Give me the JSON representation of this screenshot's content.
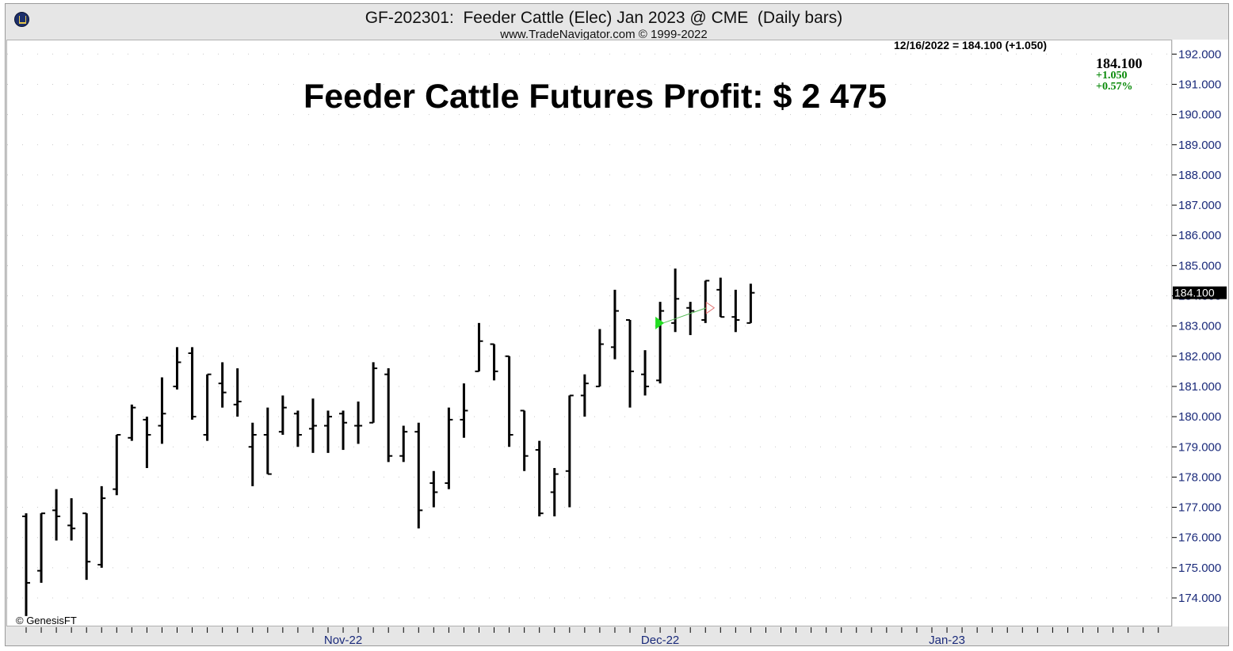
{
  "header": {
    "title": "GF-202301:  Feeder Cattle (Elec) Jan 2023 @ CME  (Daily bars)",
    "subtitle": "www.TradeNavigator.com © 1999-2022"
  },
  "readout": "12/16/2022 = 184.100 (+1.050)",
  "annotation": "Feeder Cattle Futures Profit: $ 2 475",
  "quote": {
    "last": "184.100",
    "change": "+1.050",
    "percent": "+0.57%"
  },
  "copyright": "© GenesisFT",
  "colors": {
    "bar": "#000000",
    "price_axis_text": "#1a2a7a",
    "gain": "#0a8a0a",
    "entry_marker": "#22dd22",
    "exit_marker": "#e07070"
  },
  "chart_data": {
    "type": "ohlc",
    "title": "GF-202301:  Feeder Cattle (Elec) Jan 2023 @ CME  (Daily bars)",
    "ylim": [
      173.0,
      192.5
    ],
    "y_ticks": [
      "174.000",
      "175.000",
      "176.000",
      "177.000",
      "178.000",
      "179.000",
      "180.000",
      "181.000",
      "182.000",
      "183.000",
      "184.000",
      "185.000",
      "186.000",
      "187.000",
      "188.000",
      "189.000",
      "190.000",
      "191.000",
      "192.000"
    ],
    "x_labels": [
      {
        "label": "Nov-22",
        "day": 21
      },
      {
        "label": "Dec-22",
        "day": 42
      },
      {
        "label": "Jan-23",
        "day": 61
      }
    ],
    "days_total": 76,
    "last_price_marker": "184.100",
    "bars": [
      {
        "o": 176.7,
        "h": 176.8,
        "l": 173.4,
        "c": 174.5
      },
      {
        "o": 174.9,
        "h": 176.8,
        "l": 174.5,
        "c": 176.8
      },
      {
        "o": 176.9,
        "h": 177.6,
        "l": 175.9,
        "c": 176.7
      },
      {
        "o": 176.4,
        "h": 177.3,
        "l": 175.9,
        "c": 176.3
      },
      {
        "o": 176.8,
        "h": 176.8,
        "l": 174.6,
        "c": 175.2
      },
      {
        "o": 175.1,
        "h": 177.7,
        "l": 175.0,
        "c": 177.3
      },
      {
        "o": 177.6,
        "h": 179.4,
        "l": 177.4,
        "c": 179.4
      },
      {
        "o": 179.3,
        "h": 180.4,
        "l": 179.2,
        "c": 180.3
      },
      {
        "o": 179.9,
        "h": 180.0,
        "l": 178.3,
        "c": 179.4
      },
      {
        "o": 179.7,
        "h": 181.3,
        "l": 179.1,
        "c": 180.1
      },
      {
        "o": 181.0,
        "h": 182.3,
        "l": 180.9,
        "c": 181.8
      },
      {
        "o": 182.1,
        "h": 182.3,
        "l": 179.9,
        "c": 180.0
      },
      {
        "o": 179.4,
        "h": 181.4,
        "l": 179.2,
        "c": 181.4
      },
      {
        "o": 181.1,
        "h": 181.8,
        "l": 180.3,
        "c": 180.8
      },
      {
        "o": 180.4,
        "h": 181.6,
        "l": 180.0,
        "c": 180.5
      },
      {
        "o": 179.0,
        "h": 179.8,
        "l": 177.7,
        "c": 179.4
      },
      {
        "o": 179.4,
        "h": 180.3,
        "l": 178.1,
        "c": 178.1
      },
      {
        "o": 179.5,
        "h": 180.7,
        "l": 179.4,
        "c": 180.3
      },
      {
        "o": 180.1,
        "h": 180.2,
        "l": 179.0,
        "c": 179.4
      },
      {
        "o": 179.6,
        "h": 180.6,
        "l": 178.8,
        "c": 179.7
      },
      {
        "o": 179.7,
        "h": 180.2,
        "l": 178.8,
        "c": 180.0
      },
      {
        "o": 180.1,
        "h": 180.2,
        "l": 178.9,
        "c": 179.8
      },
      {
        "o": 179.7,
        "h": 180.5,
        "l": 179.1,
        "c": 179.7
      },
      {
        "o": 179.8,
        "h": 181.8,
        "l": 179.8,
        "c": 181.6
      },
      {
        "o": 181.4,
        "h": 181.6,
        "l": 178.5,
        "c": 178.7
      },
      {
        "o": 178.7,
        "h": 179.7,
        "l": 178.5,
        "c": 179.5
      },
      {
        "o": 179.5,
        "h": 179.8,
        "l": 176.3,
        "c": 176.9
      },
      {
        "o": 177.8,
        "h": 178.2,
        "l": 177.0,
        "c": 177.5
      },
      {
        "o": 177.8,
        "h": 180.3,
        "l": 177.6,
        "c": 179.9
      },
      {
        "o": 179.9,
        "h": 181.1,
        "l": 179.3,
        "c": 180.2
      },
      {
        "o": 181.5,
        "h": 183.1,
        "l": 181.5,
        "c": 182.5
      },
      {
        "o": 182.4,
        "h": 182.4,
        "l": 181.2,
        "c": 181.5
      },
      {
        "o": 182.0,
        "h": 182.0,
        "l": 179.0,
        "c": 179.4
      },
      {
        "o": 180.2,
        "h": 180.2,
        "l": 178.2,
        "c": 178.7
      },
      {
        "o": 178.9,
        "h": 179.2,
        "l": 176.7,
        "c": 176.8
      },
      {
        "o": 177.5,
        "h": 178.3,
        "l": 176.7,
        "c": 178.1
      },
      {
        "o": 178.2,
        "h": 180.7,
        "l": 177.0,
        "c": 180.7
      },
      {
        "o": 180.7,
        "h": 181.4,
        "l": 180.0,
        "c": 181.1
      },
      {
        "o": 181.0,
        "h": 182.9,
        "l": 181.0,
        "c": 182.4
      },
      {
        "o": 182.3,
        "h": 184.2,
        "l": 181.9,
        "c": 183.5
      },
      {
        "o": 183.2,
        "h": 183.2,
        "l": 180.3,
        "c": 181.5
      },
      {
        "o": 181.4,
        "h": 182.2,
        "l": 180.7,
        "c": 181.0
      },
      {
        "o": 181.2,
        "h": 183.8,
        "l": 181.1,
        "c": 183.5
      },
      {
        "o": 183.1,
        "h": 184.9,
        "l": 182.8,
        "c": 183.9
      },
      {
        "o": 183.6,
        "h": 183.8,
        "l": 182.7,
        "c": 183.5
      },
      {
        "o": 183.2,
        "h": 184.5,
        "l": 183.1,
        "c": 184.5
      },
      {
        "o": 184.2,
        "h": 184.6,
        "l": 183.3,
        "c": 183.3
      },
      {
        "o": 183.3,
        "h": 184.2,
        "l": 182.8,
        "c": 183.2
      },
      {
        "o": 183.1,
        "h": 184.4,
        "l": 183.1,
        "c": 184.1
      }
    ],
    "trade": {
      "entry": {
        "bar": 42,
        "price": 183.1
      },
      "exit": {
        "bar": 45,
        "price": 183.6
      }
    }
  }
}
